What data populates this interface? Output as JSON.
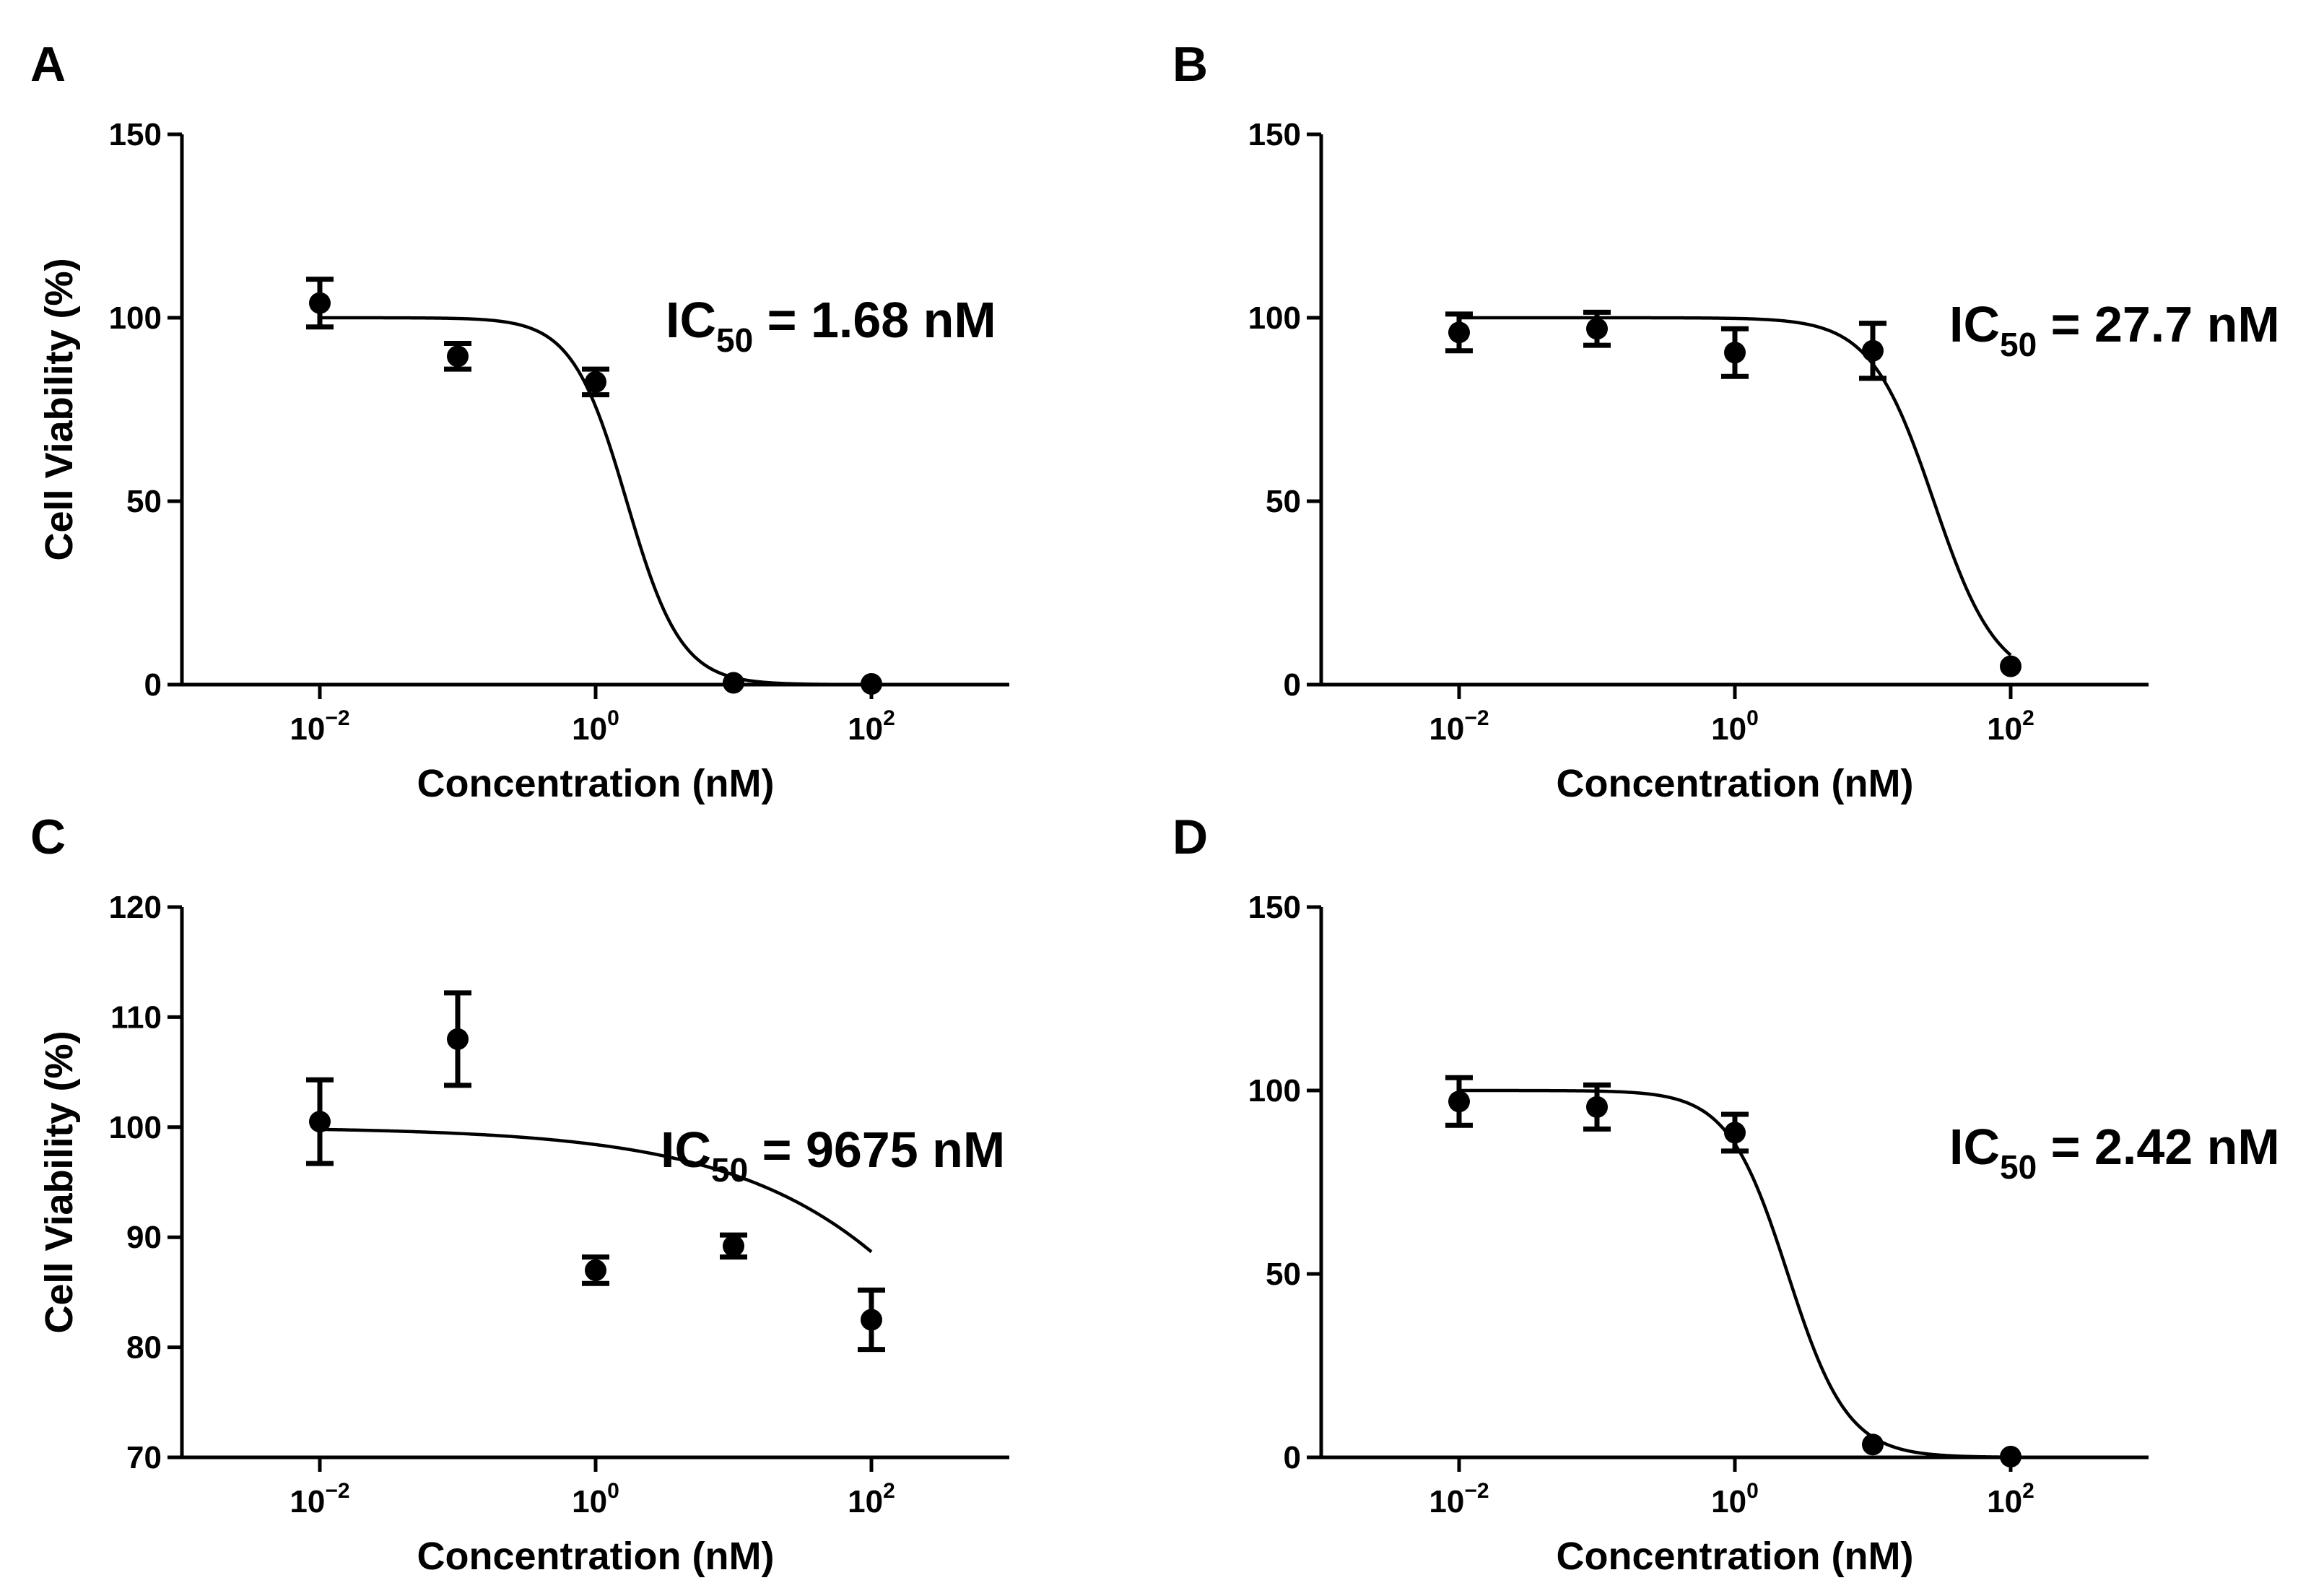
{
  "figure": {
    "panels": [
      "A",
      "B",
      "C",
      "D"
    ],
    "colors": {
      "ink": "#000000",
      "background": "#ffffff"
    }
  },
  "chart_data": [
    {
      "panel": "A",
      "type": "scatter",
      "fit": "sigmoidal dose-response",
      "xlabel": "Concentration (nM)",
      "ylabel": "Cell Viability (%)",
      "xscale": "log10",
      "xlim_log10": [
        -3,
        3
      ],
      "xticks": [
        {
          "base": "10",
          "exp": "−2",
          "log10": -2
        },
        {
          "base": "10",
          "exp": "0",
          "log10": 0
        },
        {
          "base": "10",
          "exp": "2",
          "log10": 2
        }
      ],
      "ylim": [
        0,
        150
      ],
      "yticks": [
        0,
        50,
        100,
        150
      ],
      "ic50_prefix": "IC",
      "ic50_sub": "50",
      "ic50_text": " = 1.68 nM",
      "ic50_value_nM": 1.68,
      "fit_top": 100,
      "fit_bottom": 0,
      "fit_hill": 2.2,
      "points": [
        {
          "x": 0.01,
          "y": 104,
          "err": 6.5
        },
        {
          "x": 0.1,
          "y": 89.5,
          "err": 3.5
        },
        {
          "x": 1,
          "y": 82.5,
          "err": 3.5
        },
        {
          "x": 10,
          "y": 0.5,
          "err": 0
        },
        {
          "x": 100,
          "y": 0.2,
          "err": 0
        }
      ]
    },
    {
      "panel": "B",
      "type": "scatter",
      "fit": "sigmoidal dose-response",
      "xlabel": "Concentration (nM)",
      "ylabel": "Cell Viability (%)",
      "xscale": "log10",
      "xlim_log10": [
        -3,
        3
      ],
      "xticks": [
        {
          "base": "10",
          "exp": "−2",
          "log10": -2
        },
        {
          "base": "10",
          "exp": "0",
          "log10": 0
        },
        {
          "base": "10",
          "exp": "2",
          "log10": 2
        }
      ],
      "ylim": [
        0,
        150
      ],
      "yticks": [
        0,
        50,
        100,
        150
      ],
      "ic50_prefix": "IC",
      "ic50_sub": "50",
      "ic50_text": " = 27.7 nM",
      "ic50_value_nM": 27.7,
      "fit_top": 100,
      "fit_bottom": 0,
      "fit_hill": 1.9,
      "points": [
        {
          "x": 0.01,
          "y": 96,
          "err": 5
        },
        {
          "x": 0.1,
          "y": 97,
          "err": 4.5
        },
        {
          "x": 1,
          "y": 90.5,
          "err": 6.5
        },
        {
          "x": 10,
          "y": 91,
          "err": 7.5
        },
        {
          "x": 100,
          "y": 5,
          "err": 0
        }
      ]
    },
    {
      "panel": "C",
      "type": "scatter",
      "fit": "sigmoidal dose-response",
      "xlabel": "Concentration (nM)",
      "ylabel": "Cell Viability (%)",
      "xscale": "log10",
      "xlim_log10": [
        -3,
        3
      ],
      "xticks": [
        {
          "base": "10",
          "exp": "−2",
          "log10": -2
        },
        {
          "base": "10",
          "exp": "0",
          "log10": 0
        },
        {
          "base": "10",
          "exp": "2",
          "log10": 2
        }
      ],
      "ylim": [
        70,
        120
      ],
      "yticks": [
        70,
        80,
        90,
        100,
        110,
        120
      ],
      "ic50_prefix": "IC",
      "ic50_sub": "50",
      "ic50_text": " = 9675 nM",
      "ic50_value_nM": 9675,
      "fit_top": 100,
      "fit_bottom": 0,
      "fit_hill": 0.45,
      "points": [
        {
          "x": 0.01,
          "y": 100.5,
          "err": 3.8
        },
        {
          "x": 0.1,
          "y": 108,
          "err": 4.2
        },
        {
          "x": 1,
          "y": 87,
          "err": 1.2
        },
        {
          "x": 10,
          "y": 89.2,
          "err": 1
        },
        {
          "x": 100,
          "y": 82.5,
          "err": 2.7
        }
      ]
    },
    {
      "panel": "D",
      "type": "scatter",
      "fit": "sigmoidal dose-response",
      "xlabel": "Concentration (nM)",
      "ylabel": "Cell Viability (%)",
      "xscale": "log10",
      "xlim_log10": [
        -3,
        3
      ],
      "xticks": [
        {
          "base": "10",
          "exp": "−2",
          "log10": -2
        },
        {
          "base": "10",
          "exp": "0",
          "log10": 0
        },
        {
          "base": "10",
          "exp": "2",
          "log10": 2
        }
      ],
      "ylim": [
        0,
        150
      ],
      "yticks": [
        0,
        50,
        100,
        150
      ],
      "ic50_prefix": "IC",
      "ic50_sub": "50",
      "ic50_text": " = 2.42 nM",
      "ic50_value_nM": 2.42,
      "fit_top": 100,
      "fit_bottom": 0,
      "fit_hill": 2.0,
      "points": [
        {
          "x": 0.01,
          "y": 97,
          "err": 6.5
        },
        {
          "x": 0.1,
          "y": 95.5,
          "err": 6
        },
        {
          "x": 1,
          "y": 88.5,
          "err": 5
        },
        {
          "x": 10,
          "y": 3.5,
          "err": 0
        },
        {
          "x": 100,
          "y": 0.2,
          "err": 0
        }
      ]
    }
  ]
}
